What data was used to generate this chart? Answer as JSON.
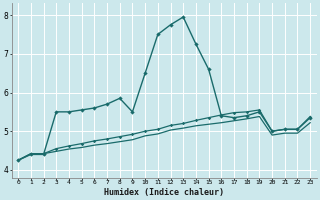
{
  "title": "",
  "xlabel": "Humidex (Indice chaleur)",
  "ylabel": "",
  "bg_color": "#cce8ec",
  "grid_color": "#b0d8dc",
  "line_color": "#1a6b6b",
  "xlim": [
    -0.5,
    23.5
  ],
  "ylim": [
    3.8,
    8.3
  ],
  "xtick_labels": [
    "0",
    "1",
    "2",
    "3",
    "4",
    "5",
    "6",
    "7",
    "8",
    "9",
    "10",
    "11",
    "12",
    "13",
    "14",
    "15",
    "16",
    "17",
    "18",
    "19",
    "20",
    "21",
    "22",
    "23"
  ],
  "yticks": [
    4,
    5,
    6,
    7,
    8
  ],
  "series1_x": [
    0,
    1,
    2,
    3,
    4,
    5,
    6,
    7,
    8,
    9,
    10,
    11,
    12,
    13,
    14,
    15,
    16,
    17,
    18,
    19,
    20,
    21,
    22,
    23
  ],
  "series1_y": [
    4.25,
    4.4,
    4.4,
    5.5,
    5.5,
    5.55,
    5.6,
    5.7,
    5.85,
    5.5,
    6.5,
    7.5,
    7.75,
    7.95,
    7.25,
    6.6,
    5.4,
    5.35,
    5.4,
    5.5,
    5.0,
    5.05,
    5.05,
    5.35
  ],
  "series2_x": [
    0,
    1,
    2,
    3,
    4,
    5,
    6,
    7,
    8,
    9,
    10,
    11,
    12,
    13,
    14,
    15,
    16,
    17,
    18,
    19,
    20,
    21,
    22,
    23
  ],
  "series2_y": [
    4.25,
    4.42,
    4.42,
    4.55,
    4.62,
    4.68,
    4.75,
    4.8,
    4.86,
    4.92,
    5.0,
    5.05,
    5.15,
    5.2,
    5.28,
    5.35,
    5.42,
    5.48,
    5.5,
    5.55,
    5.0,
    5.05,
    5.05,
    5.38
  ],
  "series3_x": [
    0,
    1,
    2,
    3,
    4,
    5,
    6,
    7,
    8,
    9,
    10,
    11,
    12,
    13,
    14,
    15,
    16,
    17,
    18,
    19,
    20,
    21,
    22,
    23
  ],
  "series3_y": [
    4.25,
    4.42,
    4.42,
    4.48,
    4.54,
    4.58,
    4.64,
    4.68,
    4.73,
    4.78,
    4.88,
    4.93,
    5.03,
    5.08,
    5.14,
    5.18,
    5.22,
    5.27,
    5.32,
    5.38,
    4.9,
    4.95,
    4.95,
    5.22
  ]
}
